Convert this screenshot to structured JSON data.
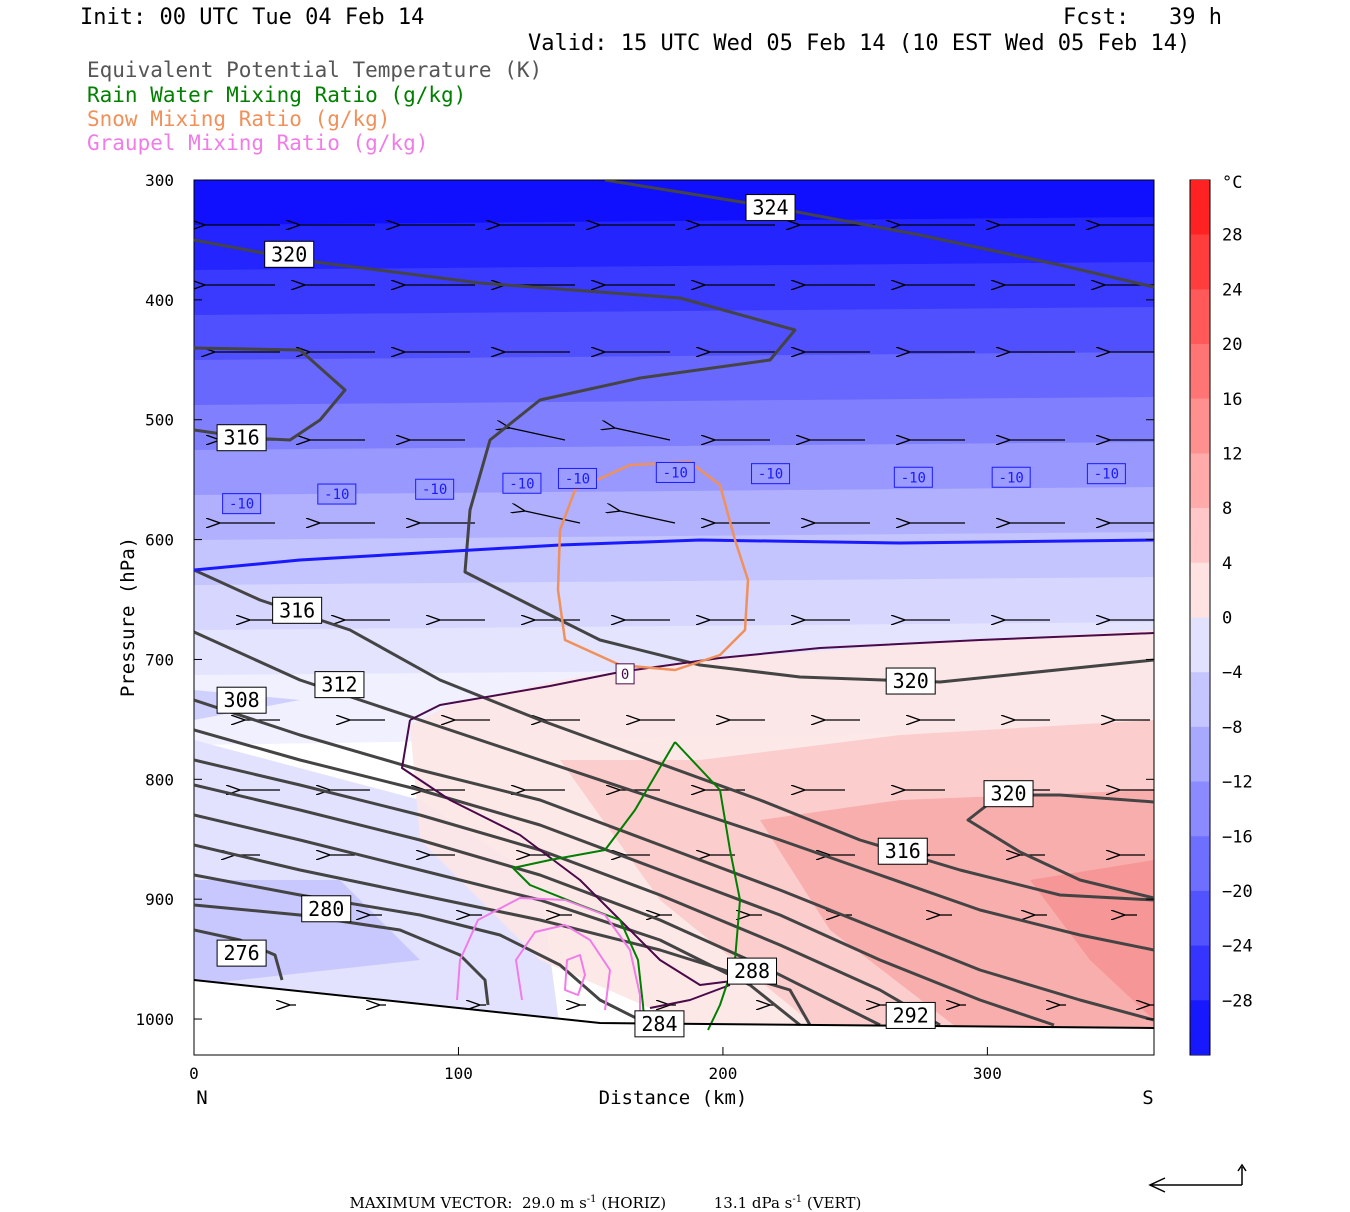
{
  "header": {
    "init": "Init: 00 UTC Tue 04 Feb 14",
    "fcst": "Fcst:   39 h",
    "valid": "Valid: 15 UTC Wed 05 Feb 14 (10 EST Wed 05 Feb 14)"
  },
  "legend": [
    {
      "label": "Equivalent Potential Temperature (K)",
      "color": "#555555"
    },
    {
      "label": "Rain Water Mixing Ratio (g/kg)",
      "color": "#007f00"
    },
    {
      "label": "Snow Mixing Ratio (g/kg)",
      "color": "#f0905a"
    },
    {
      "label": "Graupel Mixing Ratio (g/kg)",
      "color": "#f07ce8"
    }
  ],
  "chart_data": {
    "type": "heatmap",
    "ylabel": "Pressure (hPa)",
    "xlabel": "Distance (km)",
    "x_ticks": [
      0,
      100,
      200,
      300
    ],
    "y_ticks": [
      300,
      400,
      500,
      600,
      700,
      800,
      900,
      1000
    ],
    "xlim": [
      0,
      363
    ],
    "ylim": [
      1030,
      300
    ],
    "x_end_labels": {
      "left": "N",
      "right": "S"
    },
    "colorbar": {
      "unit": "°C",
      "ticks": [
        28,
        24,
        20,
        16,
        12,
        8,
        4,
        0,
        -4,
        -8,
        -12,
        -16,
        -20,
        -24,
        -28
      ],
      "range": [
        -32,
        32
      ]
    },
    "theta_e_labels": [
      {
        "text": "324",
        "x": 218,
        "p": 323
      },
      {
        "text": "320",
        "x": 36,
        "p": 362
      },
      {
        "text": "316",
        "x": 18,
        "p": 515
      },
      {
        "text": "316",
        "x": 39,
        "p": 659
      },
      {
        "text": "312",
        "x": 55,
        "p": 721
      },
      {
        "text": "308",
        "x": 18,
        "p": 734
      },
      {
        "text": "320",
        "x": 271,
        "p": 718
      },
      {
        "text": "320",
        "x": 308,
        "p": 812
      },
      {
        "text": "316",
        "x": 268,
        "p": 860
      },
      {
        "text": "280",
        "x": 50,
        "p": 908
      },
      {
        "text": "276",
        "x": 18,
        "p": 945
      },
      {
        "text": "288",
        "x": 211,
        "p": 960
      },
      {
        "text": "292",
        "x": 271,
        "p": 997
      },
      {
        "text": "284",
        "x": 176,
        "p": 1004
      }
    ],
    "isotherm_labels": [
      {
        "text": "-10",
        "x": 18,
        "p": 570
      },
      {
        "text": "-10",
        "x": 54,
        "p": 562
      },
      {
        "text": "-10",
        "x": 91,
        "p": 558
      },
      {
        "text": "-10",
        "x": 124,
        "p": 553
      },
      {
        "text": "-10",
        "x": 145,
        "p": 549
      },
      {
        "text": "-10",
        "x": 182,
        "p": 544
      },
      {
        "text": "-10",
        "x": 218,
        "p": 545
      },
      {
        "text": "-10",
        "x": 272,
        "p": 548
      },
      {
        "text": "-10",
        "x": 309,
        "p": 548
      },
      {
        "text": "-10",
        "x": 345,
        "p": 545
      },
      {
        "text": "0",
        "x": 163,
        "p": 712
      }
    ]
  },
  "footer": {
    "prefix": "MAXIMUM VECTOR:",
    "horiz_value": "29.0 m s",
    "horiz_exp": "-1",
    "horiz_tag": "(HORIZ)",
    "vert_value": "13.1 dPa s",
    "vert_exp": "-1",
    "vert_tag": "(VERT)"
  }
}
